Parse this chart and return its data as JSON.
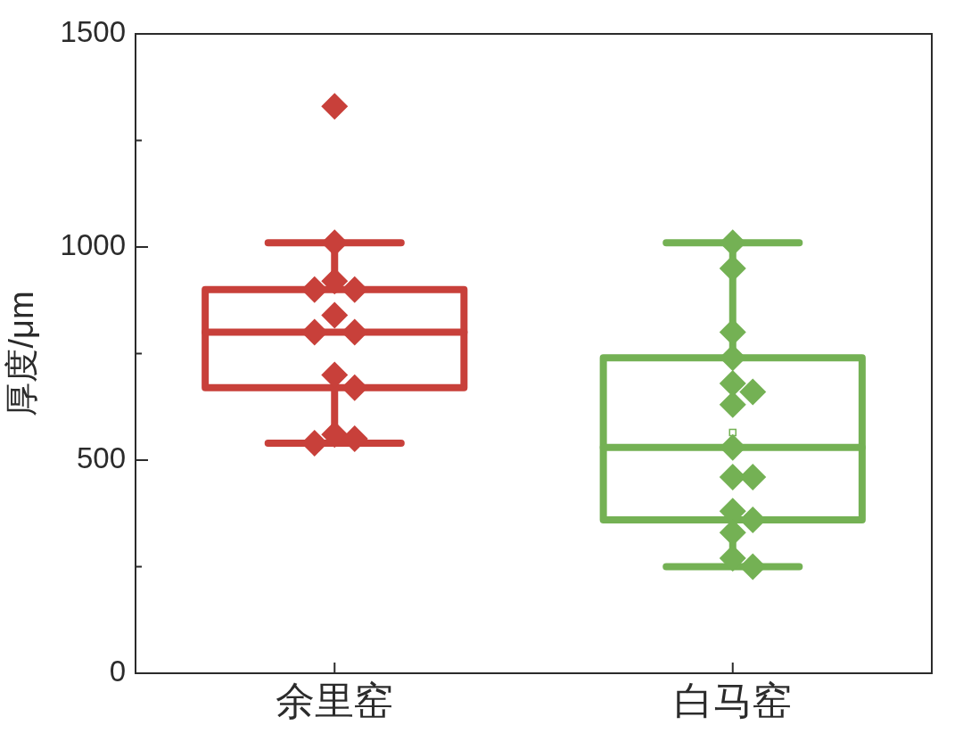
{
  "chart_data": {
    "type": "box",
    "ylabel": "厚度/μm",
    "categories": [
      "余里窑",
      "白马窑"
    ],
    "boxes": [
      {
        "low": 540,
        "q1": 670,
        "median": 800,
        "q3": 900,
        "high": 1010
      },
      {
        "low": 250,
        "q1": 360,
        "median": 530,
        "q3": 740,
        "high": 1010,
        "mean": 565
      }
    ],
    "colors": [
      "#c8403a",
      "#74b154"
    ],
    "ylim": [
      0,
      1500
    ],
    "yticks": [
      0,
      {
        "value": 250,
        "label": null
      },
      500,
      {
        "value": 750,
        "label": null
      },
      1000,
      {
        "value": 1250,
        "label": null
      },
      1500
    ],
    "marker": "diamond",
    "series": [
      {
        "type": "scatter",
        "color": "#c8403a",
        "x": [
          "余里窑",
          "余里窑",
          "余里窑",
          "余里窑",
          "余里窑",
          "余里窑",
          "余里窑",
          "余里窑",
          "余里窑",
          "余里窑",
          "余里窑",
          "余里窑",
          "余里窑"
        ],
        "values": [
          1330,
          1010,
          920,
          900,
          900,
          840,
          800,
          800,
          700,
          670,
          560,
          550,
          540
        ]
      },
      {
        "type": "scatter",
        "color": "#74b154",
        "x": [
          "白马窑",
          "白马窑",
          "白马窑",
          "白马窑",
          "白马窑",
          "白马窑",
          "白马窑",
          "白马窑",
          "白马窑",
          "白马窑",
          "白马窑",
          "白马窑",
          "白马窑",
          "白马窑",
          "白马窑"
        ],
        "values": [
          1010,
          950,
          800,
          740,
          680,
          660,
          630,
          530,
          460,
          460,
          380,
          360,
          330,
          270,
          250
        ]
      }
    ]
  }
}
